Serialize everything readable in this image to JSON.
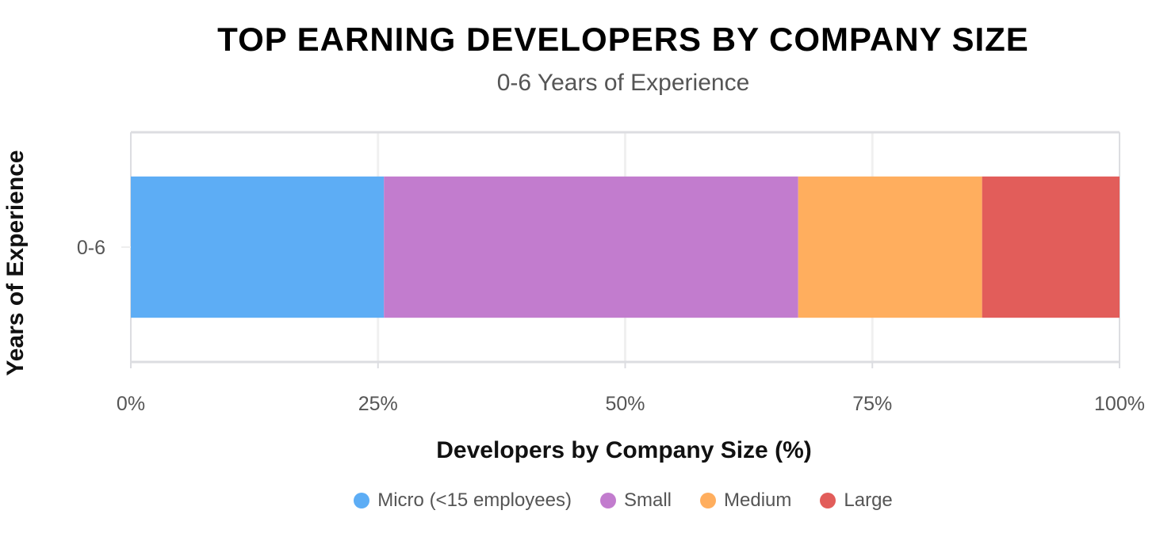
{
  "chart_data": {
    "type": "bar",
    "orientation": "horizontal",
    "stacked": true,
    "title": "TOP EARNING DEVELOPERS BY COMPANY SIZE",
    "subtitle": "0-6 Years of Experience",
    "xlabel": "Developers by Company Size (%)",
    "ylabel": "Years of Experience",
    "categories": [
      "0-6"
    ],
    "xlim": [
      0,
      100
    ],
    "xticks": [
      "0%",
      "25%",
      "50%",
      "75%",
      "100%"
    ],
    "grid": true,
    "legend_position": "bottom",
    "series": [
      {
        "name": "Micro (<15 employees)",
        "values": [
          25.6
        ],
        "color": "#5DADF5"
      },
      {
        "name": "Small",
        "values": [
          41.9
        ],
        "color": "#C27CCE"
      },
      {
        "name": "Medium",
        "values": [
          18.6
        ],
        "color": "#FFAE5E"
      },
      {
        "name": "Large",
        "values": [
          13.9
        ],
        "color": "#E25D5A"
      }
    ]
  }
}
